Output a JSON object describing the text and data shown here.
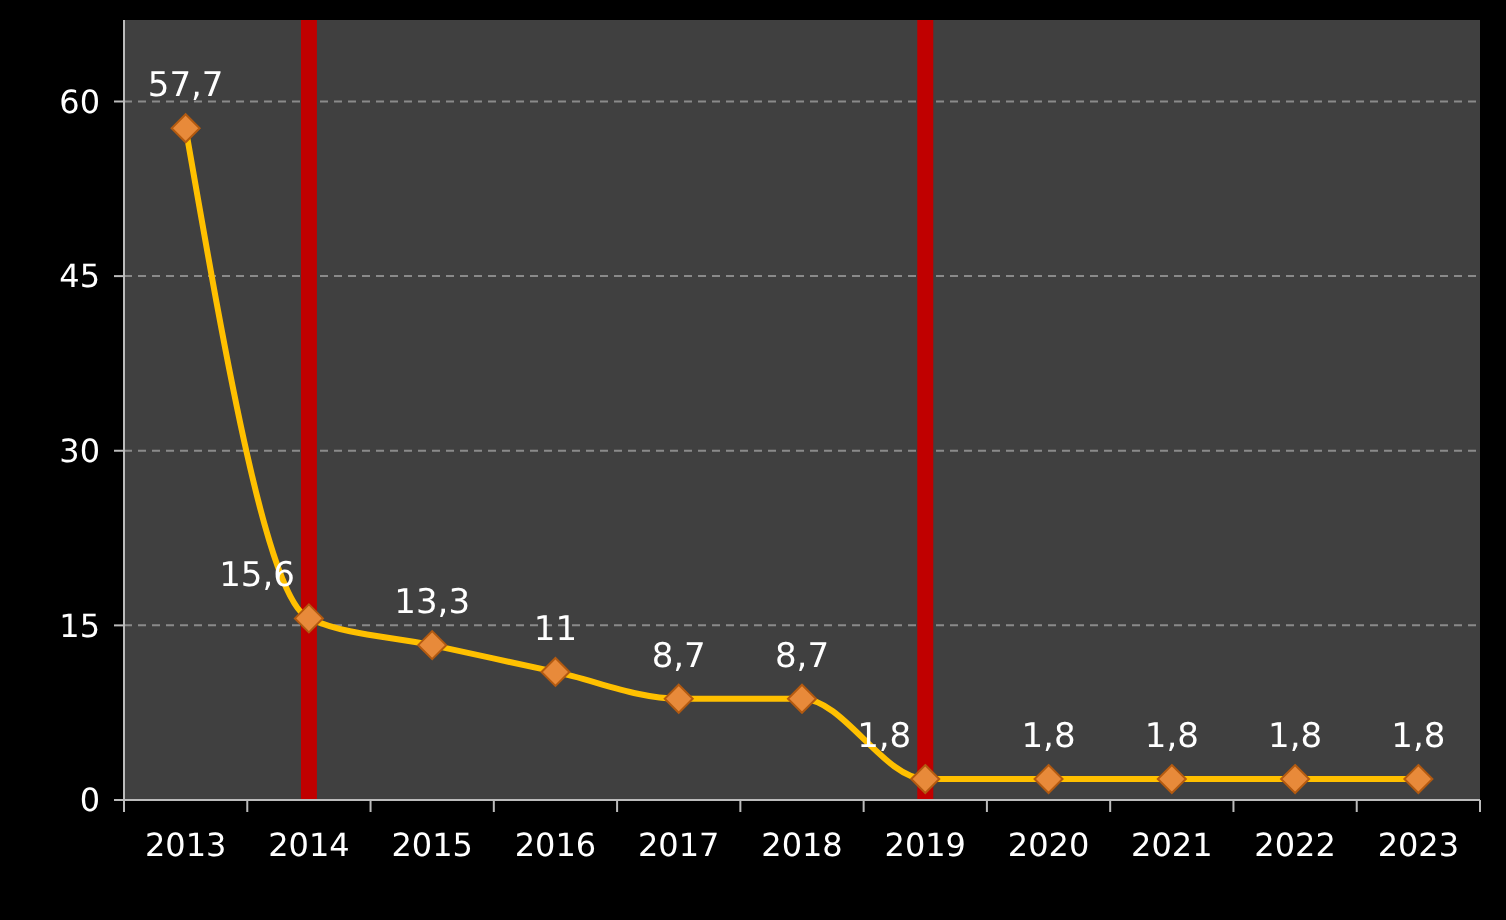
{
  "chart_data": {
    "type": "line",
    "categories": [
      "2013",
      "2014",
      "2015",
      "2016",
      "2017",
      "2018",
      "2019",
      "2020",
      "2021",
      "2022",
      "2023"
    ],
    "series": [
      {
        "color": "#ffc000",
        "values": [
          57.7,
          15.6,
          13.3,
          11,
          8.7,
          8.7,
          1.8,
          1.8,
          1.8,
          1.8,
          1.8
        ],
        "value_labels": [
          "57,7",
          "15,6",
          "13,3",
          "11",
          "8,7",
          "8,7",
          "1,8",
          "1,8",
          "1,8",
          "1,8",
          "1,8"
        ]
      }
    ],
    "ylim": [
      0,
      67
    ],
    "yticks": [
      0,
      15,
      30,
      45,
      60
    ],
    "grid": "y",
    "marker": "diamond",
    "line_style": "solid",
    "ref_lines": [
      {
        "axis": "x",
        "value": "2014",
        "color": "#c00000"
      },
      {
        "axis": "x",
        "value": "2019",
        "color": "#c00000"
      }
    ]
  }
}
